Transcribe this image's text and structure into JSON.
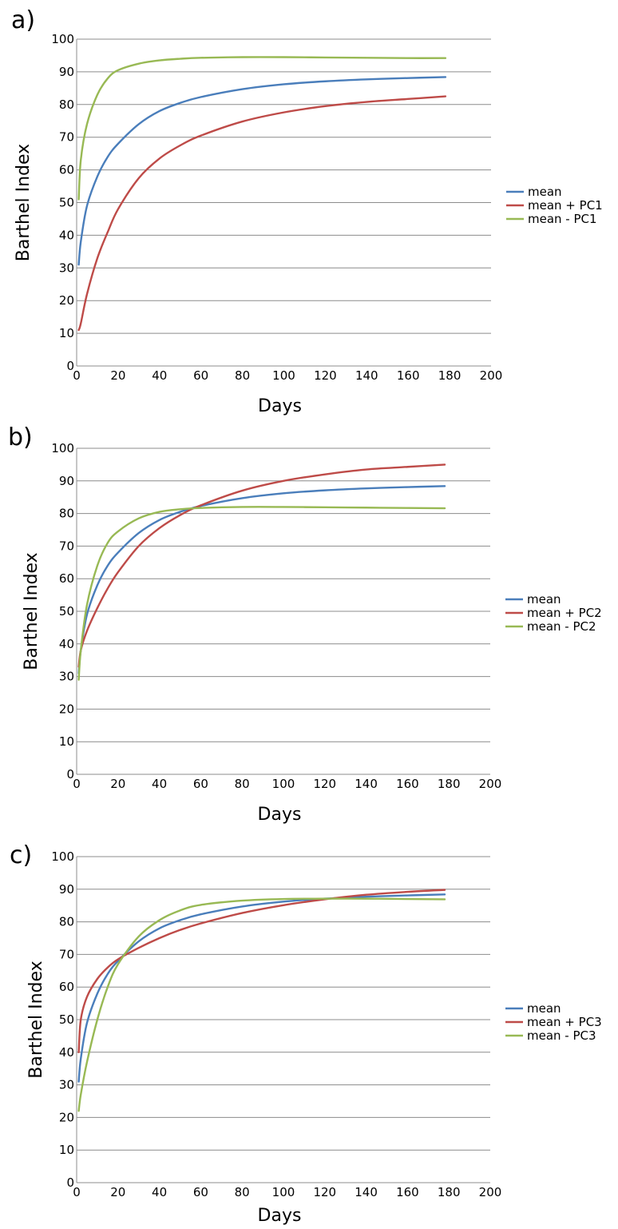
{
  "chart_data": [
    {
      "type": "line",
      "panel_label": "a)",
      "xlabel": "Days",
      "ylabel": "Barthel Index",
      "xlim": [
        0,
        200
      ],
      "ylim": [
        0,
        100
      ],
      "x_ticks": [
        0,
        20,
        40,
        60,
        80,
        100,
        120,
        140,
        160,
        180,
        200
      ],
      "y_ticks": [
        0,
        10,
        20,
        30,
        40,
        50,
        60,
        70,
        80,
        90,
        100
      ],
      "grid": "horizontal",
      "legend_position": "right",
      "x": [
        1,
        2,
        5,
        10,
        15,
        20,
        30,
        40,
        50,
        60,
        80,
        100,
        120,
        140,
        160,
        178
      ],
      "series": [
        {
          "name": "mean",
          "color": "#4a7ebb",
          "values": [
            31,
            38,
            49,
            58,
            64,
            68,
            74,
            78,
            80.5,
            82.3,
            84.7,
            86.2,
            87.1,
            87.7,
            88.1,
            88.4
          ]
        },
        {
          "name": "mean + PC1",
          "color": "#be4b48",
          "values": [
            11,
            13,
            22,
            33,
            41,
            48,
            57.5,
            63.5,
            67.5,
            70.5,
            74.8,
            77.6,
            79.5,
            80.8,
            81.7,
            82.5
          ]
        },
        {
          "name": "mean - PC1",
          "color": "#98b954",
          "values": [
            51,
            63,
            74,
            83,
            88,
            90.5,
            92.5,
            93.5,
            94,
            94.3,
            94.5,
            94.5,
            94.4,
            94.3,
            94.2,
            94.2
          ]
        }
      ]
    },
    {
      "type": "line",
      "panel_label": "b)",
      "xlabel": "Days",
      "ylabel": "Barthel Index",
      "xlim": [
        0,
        200
      ],
      "ylim": [
        0,
        100
      ],
      "x_ticks": [
        0,
        20,
        40,
        60,
        80,
        100,
        120,
        140,
        160,
        180,
        200
      ],
      "y_ticks": [
        0,
        10,
        20,
        30,
        40,
        50,
        60,
        70,
        80,
        90,
        100
      ],
      "grid": "horizontal",
      "legend_position": "right",
      "x": [
        1,
        2,
        5,
        10,
        15,
        20,
        30,
        40,
        50,
        60,
        80,
        100,
        120,
        140,
        160,
        178
      ],
      "series": [
        {
          "name": "mean",
          "color": "#4a7ebb",
          "values": [
            31,
            38,
            49,
            58,
            64,
            68,
            74,
            78,
            80.5,
            82.3,
            84.7,
            86.2,
            87.1,
            87.7,
            88.1,
            88.4
          ]
        },
        {
          "name": "mean + PC2",
          "color": "#be4b48",
          "values": [
            33,
            38,
            44,
            51,
            57,
            62,
            70,
            75.5,
            79.5,
            82.5,
            87,
            90,
            92,
            93.5,
            94.3,
            95
          ]
        },
        {
          "name": "mean - PC2",
          "color": "#98b954",
          "values": [
            29,
            38,
            52,
            64,
            71,
            74.5,
            78.5,
            80.5,
            81.3,
            81.7,
            82,
            82,
            81.9,
            81.8,
            81.7,
            81.6
          ]
        }
      ]
    },
    {
      "type": "line",
      "panel_label": "c)",
      "xlabel": "Days",
      "ylabel": "Barthel Index",
      "xlim": [
        0,
        200
      ],
      "ylim": [
        0,
        100
      ],
      "x_ticks": [
        0,
        20,
        40,
        60,
        80,
        100,
        120,
        140,
        160,
        180,
        200
      ],
      "y_ticks": [
        0,
        10,
        20,
        30,
        40,
        50,
        60,
        70,
        80,
        90,
        100
      ],
      "grid": "horizontal",
      "legend_position": "right",
      "x": [
        1,
        2,
        5,
        10,
        15,
        20,
        30,
        40,
        50,
        60,
        80,
        100,
        120,
        140,
        160,
        178
      ],
      "series": [
        {
          "name": "mean",
          "color": "#4a7ebb",
          "values": [
            31,
            38,
            49,
            58,
            64,
            68,
            74,
            78,
            80.5,
            82.3,
            84.7,
            86.2,
            87.1,
            87.7,
            88.1,
            88.4
          ]
        },
        {
          "name": "mean + PC3",
          "color": "#be4b48",
          "values": [
            40,
            50,
            57,
            62.5,
            66,
            68.5,
            72,
            75,
            77.5,
            79.5,
            82.7,
            85.1,
            86.9,
            88.3,
            89.2,
            89.8
          ]
        },
        {
          "name": "mean - PC3",
          "color": "#98b954",
          "values": [
            22,
            27,
            37,
            50,
            60,
            67,
            75.5,
            80.5,
            83.5,
            85.2,
            86.5,
            87,
            87.1,
            87.1,
            87,
            86.9
          ]
        }
      ]
    }
  ]
}
